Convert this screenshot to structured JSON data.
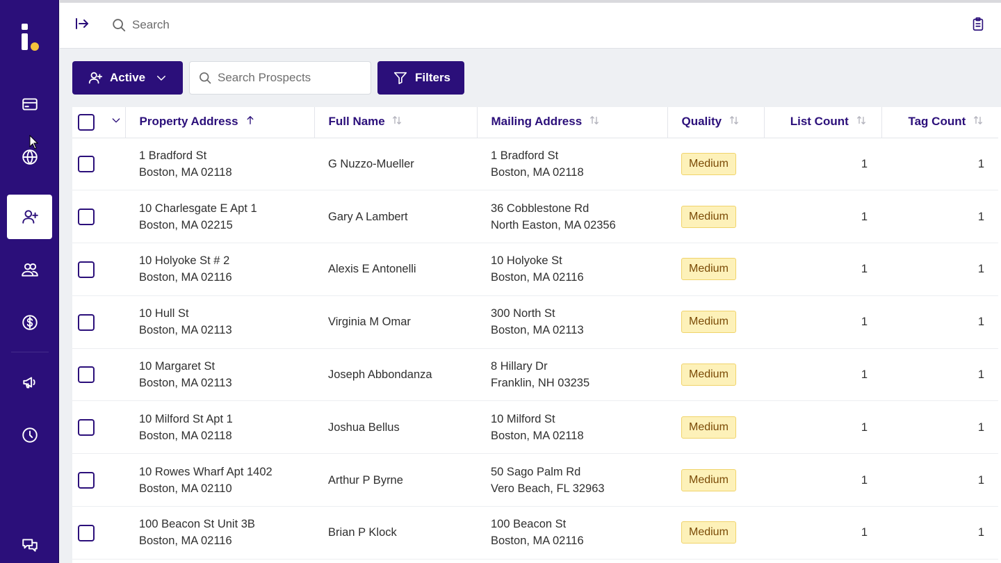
{
  "top_bar": {
    "search_label": "Search"
  },
  "toolbar": {
    "active_label": "Active",
    "search_placeholder": "Search Prospects",
    "filters_label": "Filters"
  },
  "table": {
    "columns": [
      {
        "label": "Property Address",
        "sort": "ascending"
      },
      {
        "label": "Full Name",
        "sort": "none"
      },
      {
        "label": "Mailing Address",
        "sort": "none"
      },
      {
        "label": "Quality",
        "sort": "none"
      },
      {
        "label": "List Count",
        "sort": "none"
      },
      {
        "label": "Tag Count",
        "sort": "none"
      }
    ],
    "rows": [
      {
        "prop1": "1 Bradford St",
        "prop2": "Boston, MA 02118",
        "name": "G Nuzzo-Mueller",
        "mail1": "1 Bradford St",
        "mail2": "Boston, MA 02118",
        "quality": "Medium",
        "list_count": "1",
        "tag_count": "1"
      },
      {
        "prop1": "10 Charlesgate E Apt 1",
        "prop2": "Boston, MA 02215",
        "name": "Gary A Lambert",
        "mail1": "36 Cobblestone Rd",
        "mail2": "North Easton, MA 02356",
        "quality": "Medium",
        "list_count": "1",
        "tag_count": "1"
      },
      {
        "prop1": "10 Holyoke St # 2",
        "prop2": "Boston, MA 02116",
        "name": "Alexis E Antonelli",
        "mail1": "10 Holyoke St",
        "mail2": "Boston, MA 02116",
        "quality": "Medium",
        "list_count": "1",
        "tag_count": "1"
      },
      {
        "prop1": "10 Hull St",
        "prop2": "Boston, MA 02113",
        "name": "Virginia M Omar",
        "mail1": "300 North St",
        "mail2": "Boston, MA 02113",
        "quality": "Medium",
        "list_count": "1",
        "tag_count": "1"
      },
      {
        "prop1": "10 Margaret St",
        "prop2": "Boston, MA 02113",
        "name": "Joseph Abbondanza",
        "mail1": "8 Hillary Dr",
        "mail2": "Franklin, NH 03235",
        "quality": "Medium",
        "list_count": "1",
        "tag_count": "1"
      },
      {
        "prop1": "10 Milford St Apt 1",
        "prop2": "Boston, MA 02118",
        "name": "Joshua Bellus",
        "mail1": "10 Milford St",
        "mail2": "Boston, MA 02118",
        "quality": "Medium",
        "list_count": "1",
        "tag_count": "1"
      },
      {
        "prop1": "10 Rowes Wharf Apt 1402",
        "prop2": "Boston, MA 02110",
        "name": "Arthur P Byrne",
        "mail1": "50 Sago Palm Rd",
        "mail2": "Vero Beach, FL 32963",
        "quality": "Medium",
        "list_count": "1",
        "tag_count": "1"
      },
      {
        "prop1": "100 Beacon St Unit 3B",
        "prop2": "Boston, MA 02116",
        "name": "Brian P Klock",
        "mail1": "100 Beacon St",
        "mail2": "Boston, MA 02116",
        "quality": "Medium",
        "list_count": "1",
        "tag_count": "1"
      }
    ]
  },
  "sidebar": {
    "items": [
      {
        "icon": "credit-card-icon",
        "active": false
      },
      {
        "icon": "globe-icon",
        "active": false
      },
      {
        "icon": "user-plus-icon",
        "active": true
      },
      {
        "icon": "users-icon",
        "active": false
      },
      {
        "icon": "dollar-icon",
        "active": false
      },
      {
        "icon": "megaphone-icon",
        "active": false
      },
      {
        "icon": "clock-icon",
        "active": false
      },
      {
        "icon": "chat-icon",
        "active": false
      }
    ]
  },
  "colors": {
    "brand": "#2b0f7a",
    "logo_dot": "#f5c33b",
    "badge_bg": "#fdf1b9"
  }
}
